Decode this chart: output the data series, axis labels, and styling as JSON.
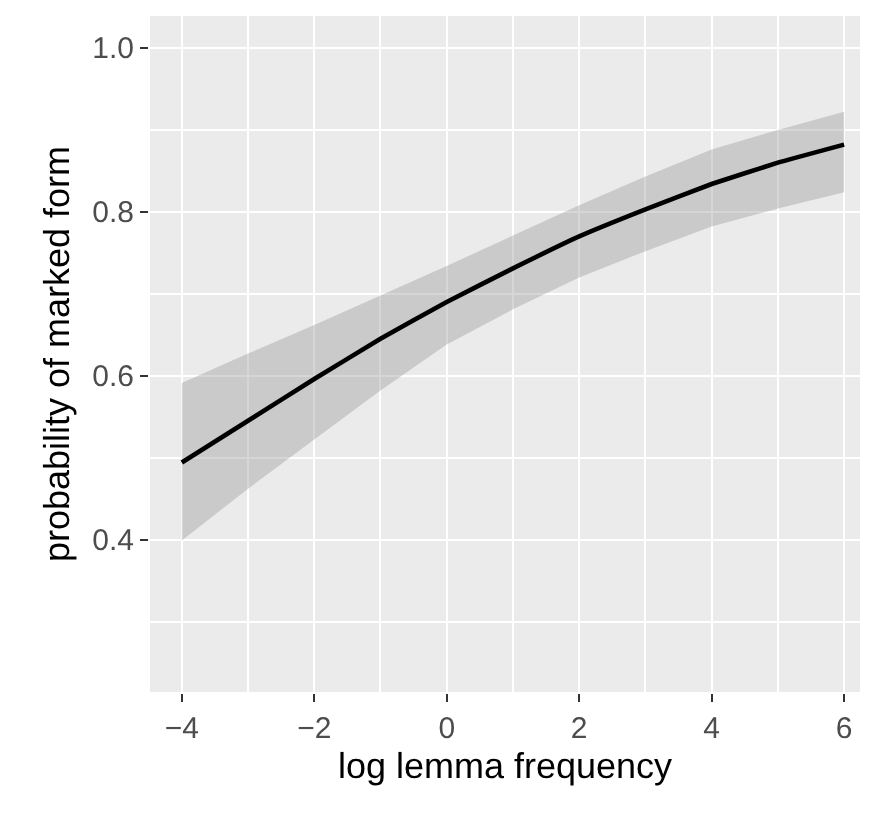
{
  "chart_data": {
    "type": "line",
    "xlabel": "log lemma frequency",
    "ylabel": "probability of marked form",
    "x": [
      -4,
      -3,
      -2,
      -1,
      0,
      1,
      2,
      3,
      4,
      5,
      6
    ],
    "series": [
      {
        "color": "#000000",
        "values": [
          0.494,
          0.545,
          0.596,
          0.645,
          0.69,
          0.731,
          0.77,
          0.803,
          0.834,
          0.86,
          0.882
        ],
        "lower": [
          0.399,
          0.462,
          0.522,
          0.582,
          0.638,
          0.681,
          0.72,
          0.752,
          0.782,
          0.804,
          0.824
        ],
        "upper": [
          0.591,
          0.627,
          0.662,
          0.698,
          0.734,
          0.771,
          0.808,
          0.843,
          0.876,
          0.9,
          0.922
        ]
      }
    ],
    "xlim": [
      -4.48,
      6.24
    ],
    "ylim": [
      0.214,
      1.039
    ],
    "xticks": [
      {
        "value": -4,
        "label": "−4"
      },
      {
        "value": -2,
        "label": "−2"
      },
      0,
      2,
      4,
      6
    ],
    "yticks": [
      {
        "value": 0.4,
        "label": "0.4"
      },
      {
        "value": 0.6,
        "label": "0.6"
      },
      {
        "value": 0.8,
        "label": "0.8"
      },
      {
        "value": 1.0,
        "label": "1.0"
      }
    ],
    "grid": true,
    "marker": "none",
    "line_style": "solid"
  }
}
